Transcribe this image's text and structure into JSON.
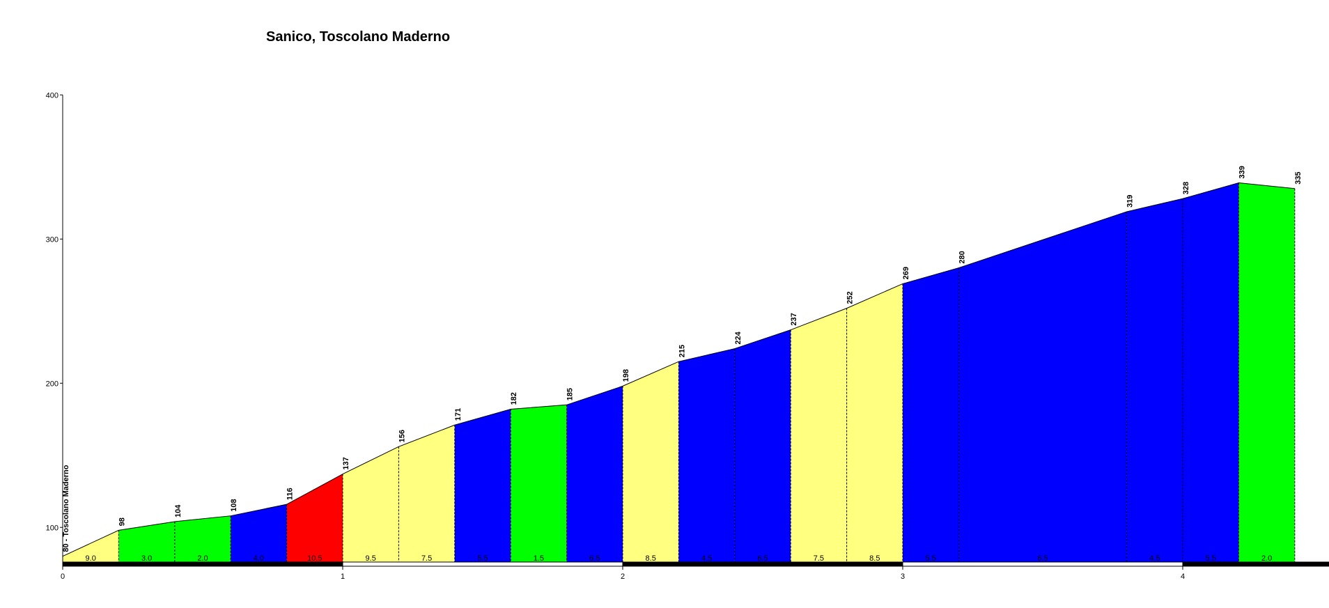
{
  "chart_data": {
    "type": "area",
    "title": "Sanico, Toscolano Maderno",
    "xlabel": "",
    "ylabel": "",
    "xlim": [
      0,
      4.75
    ],
    "ylim": [
      75,
      400
    ],
    "x_ticks": [
      "0",
      "1",
      "2",
      "3",
      "4"
    ],
    "y_ticks": [
      "100",
      "200",
      "300",
      "400"
    ],
    "grid": false,
    "start_label": "80 - Toscolano Maderno",
    "colors": {
      "yellow": "#ffff80",
      "green": "#00ff00",
      "blue": "#0000ff",
      "red": "#ff0000"
    },
    "points": [
      {
        "x": 0.0,
        "y": 80
      },
      {
        "x": 0.2,
        "y": 98,
        "label": "98"
      },
      {
        "x": 0.4,
        "y": 104,
        "label": "104"
      },
      {
        "x": 0.6,
        "y": 108,
        "label": "108"
      },
      {
        "x": 0.8,
        "y": 116,
        "label": "116"
      },
      {
        "x": 1.0,
        "y": 137,
        "label": "137"
      },
      {
        "x": 1.2,
        "y": 156,
        "label": "156"
      },
      {
        "x": 1.4,
        "y": 171,
        "label": "171"
      },
      {
        "x": 1.6,
        "y": 182,
        "label": "182"
      },
      {
        "x": 1.8,
        "y": 185,
        "label": "185"
      },
      {
        "x": 2.0,
        "y": 198,
        "label": "198"
      },
      {
        "x": 2.2,
        "y": 215,
        "label": "215"
      },
      {
        "x": 2.4,
        "y": 224,
        "label": "224"
      },
      {
        "x": 2.6,
        "y": 237,
        "label": "237"
      },
      {
        "x": 2.8,
        "y": 252,
        "label": "252"
      },
      {
        "x": 3.0,
        "y": 269,
        "label": "269"
      },
      {
        "x": 3.2,
        "y": 280,
        "label": "280"
      },
      {
        "x": 3.4,
        "y": 293
      },
      {
        "x": 3.6,
        "y": 306
      },
      {
        "x": 3.8,
        "y": 319,
        "label": "319"
      },
      {
        "x": 4.0,
        "y": 328,
        "label": "328"
      },
      {
        "x": 4.2,
        "y": 339,
        "label": "339"
      },
      {
        "x": 4.4,
        "y": 335,
        "label": "335"
      }
    ],
    "segments": [
      {
        "from": 0.0,
        "to": 0.2,
        "grade": "9.0",
        "color": "yellow"
      },
      {
        "from": 0.2,
        "to": 0.4,
        "grade": "3.0",
        "color": "green"
      },
      {
        "from": 0.4,
        "to": 0.6,
        "grade": "2.0",
        "color": "green"
      },
      {
        "from": 0.6,
        "to": 0.8,
        "grade": "4.0",
        "color": "blue"
      },
      {
        "from": 0.8,
        "to": 1.0,
        "grade": "10.5",
        "color": "red"
      },
      {
        "from": 1.0,
        "to": 1.2,
        "grade": "9.5",
        "color": "yellow"
      },
      {
        "from": 1.2,
        "to": 1.4,
        "grade": "7.5",
        "color": "yellow"
      },
      {
        "from": 1.4,
        "to": 1.6,
        "grade": "5.5",
        "color": "blue"
      },
      {
        "from": 1.6,
        "to": 1.8,
        "grade": "1.5",
        "color": "green"
      },
      {
        "from": 1.8,
        "to": 2.0,
        "grade": "6.5",
        "color": "blue"
      },
      {
        "from": 2.0,
        "to": 2.2,
        "grade": "8.5",
        "color": "yellow"
      },
      {
        "from": 2.2,
        "to": 2.4,
        "grade": "4.5",
        "color": "blue"
      },
      {
        "from": 2.4,
        "to": 2.6,
        "grade": "6.5",
        "color": "blue"
      },
      {
        "from": 2.6,
        "to": 2.8,
        "grade": "7.5",
        "color": "yellow"
      },
      {
        "from": 2.8,
        "to": 3.0,
        "grade": "8.5",
        "color": "yellow"
      },
      {
        "from": 3.0,
        "to": 3.2,
        "grade": "5.5",
        "color": "blue"
      },
      {
        "from": 3.2,
        "to": 3.8,
        "grade": "6.5",
        "color": "blue"
      },
      {
        "from": 3.8,
        "to": 4.0,
        "grade": "4.5",
        "color": "blue"
      },
      {
        "from": 4.0,
        "to": 4.2,
        "grade": "5.5",
        "color": "blue"
      },
      {
        "from": 4.2,
        "to": 4.4,
        "grade": "2.0",
        "color": "green"
      }
    ],
    "road_bar": [
      {
        "from": 0.0,
        "to": 1.0,
        "color": "black"
      },
      {
        "from": 1.0,
        "to": 2.0,
        "color": "white"
      },
      {
        "from": 2.0,
        "to": 3.0,
        "color": "black"
      },
      {
        "from": 3.0,
        "to": 4.0,
        "color": "white"
      },
      {
        "from": 4.0,
        "to": 4.75,
        "color": "black"
      }
    ]
  }
}
